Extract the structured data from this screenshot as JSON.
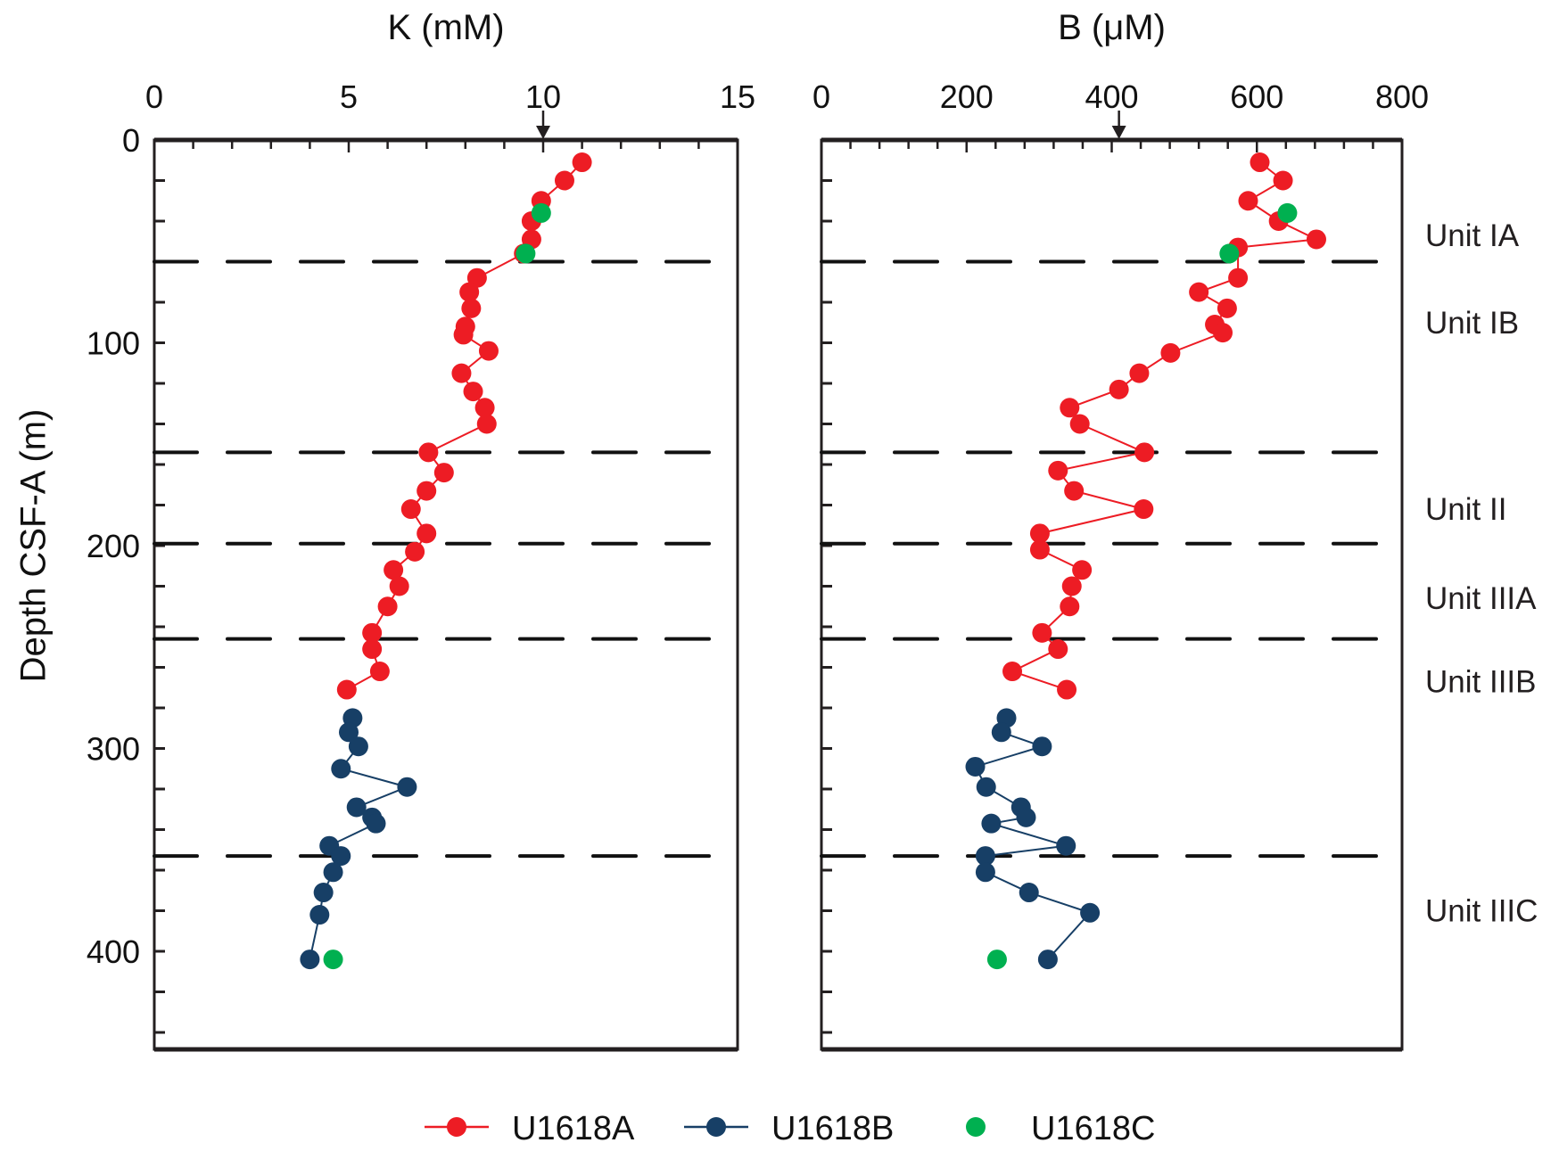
{
  "chart_data": [
    {
      "type": "scatter",
      "title": "K (mM)",
      "xlabel": "K (mM)",
      "ylabel": "Depth CSF-A (m)",
      "xlim": [
        0,
        15
      ],
      "ylim": [
        0,
        450
      ],
      "y_inverted": true,
      "x_ticks": [
        0,
        5,
        10,
        15
      ],
      "y_ticks": [
        0,
        100,
        200,
        300,
        400
      ],
      "reference_arrow": 10,
      "series": [
        {
          "name": "U1618A",
          "color": "#ed1c24",
          "connected": true,
          "x": [
            11.0,
            10.55,
            9.95,
            9.7,
            9.7,
            9.5,
            8.3,
            8.1,
            8.15,
            8.0,
            7.95,
            8.6,
            7.9,
            8.2,
            8.5,
            8.55,
            7.05,
            7.45,
            7.0,
            6.6,
            7.0,
            6.7,
            6.15,
            6.3,
            6.0,
            5.6,
            5.6,
            5.8,
            4.95
          ],
          "y": [
            11,
            20,
            30,
            40,
            49,
            56,
            68,
            75,
            83,
            92,
            96,
            104,
            115,
            124,
            132,
            140,
            154,
            164,
            173,
            182,
            194,
            203,
            212,
            220,
            230,
            243,
            251,
            262,
            271
          ]
        },
        {
          "name": "U1618B",
          "color": "#173f66",
          "connected": true,
          "x": [
            5.1,
            5.0,
            5.25,
            4.8,
            6.5,
            5.2,
            5.6,
            5.7,
            4.5,
            4.8,
            4.6,
            4.35,
            4.25,
            4.0
          ],
          "y": [
            285,
            292,
            299,
            310,
            319,
            329,
            334,
            337,
            348,
            353,
            361,
            371,
            382,
            404
          ]
        },
        {
          "name": "U1618C",
          "color": "#00b050",
          "connected": false,
          "x": [
            9.95,
            9.55,
            4.6
          ],
          "y": [
            36,
            56,
            404
          ]
        }
      ]
    },
    {
      "type": "scatter",
      "title": "B (μM)",
      "xlabel": "B (μM)",
      "ylabel": "Depth CSF-A (m)",
      "xlim": [
        0,
        800
      ],
      "ylim": [
        0,
        450
      ],
      "y_inverted": true,
      "x_ticks": [
        0,
        200,
        400,
        600,
        800
      ],
      "reference_arrow": 410,
      "series": [
        {
          "name": "U1618A",
          "color": "#ed1c24",
          "connected": true,
          "x": [
            604,
            636,
            588,
            630,
            682,
            574,
            574,
            520,
            559,
            542,
            553,
            481,
            438,
            410,
            342,
            356,
            445,
            326,
            348,
            444,
            301,
            301,
            359,
            345,
            342,
            304,
            326,
            263,
            338
          ],
          "y": [
            11,
            20,
            30,
            40,
            49,
            53,
            68,
            75,
            83,
            91,
            95,
            105,
            115,
            123,
            132,
            140,
            154,
            163,
            173,
            182,
            194,
            202,
            212,
            220,
            230,
            243,
            251,
            262,
            271
          ]
        },
        {
          "name": "U1618B",
          "color": "#173f66",
          "connected": true,
          "x": [
            255,
            248,
            304,
            212,
            227,
            275,
            282,
            234,
            337,
            226,
            226,
            286,
            370,
            312
          ],
          "y": [
            285,
            292,
            299,
            309,
            319,
            329,
            334,
            337,
            348,
            353,
            361,
            371,
            381,
            404
          ]
        },
        {
          "name": "U1618C",
          "color": "#00b050",
          "connected": false,
          "x": [
            642,
            562,
            242
          ],
          "y": [
            36,
            56,
            404
          ]
        }
      ]
    }
  ],
  "unit_boundaries_m": [
    60,
    154,
    199,
    246,
    353
  ],
  "units": [
    {
      "label": "Unit IA",
      "depth": 47
    },
    {
      "label": "Unit IB",
      "depth": 90
    },
    {
      "label": "Unit II",
      "depth": 182
    },
    {
      "label": "Unit IIIA",
      "depth": 226
    },
    {
      "label": "Unit IIIB",
      "depth": 267
    },
    {
      "label": "Unit IIIC",
      "depth": 380
    }
  ],
  "y_axis_label": "Depth CSF-A (m)",
  "legend": [
    {
      "label": "U1618A",
      "color": "#ed1c24",
      "line": true
    },
    {
      "label": "U1618B",
      "color": "#173f66",
      "line": true
    },
    {
      "label": "U1618C",
      "color": "#00b050",
      "line": false
    }
  ]
}
